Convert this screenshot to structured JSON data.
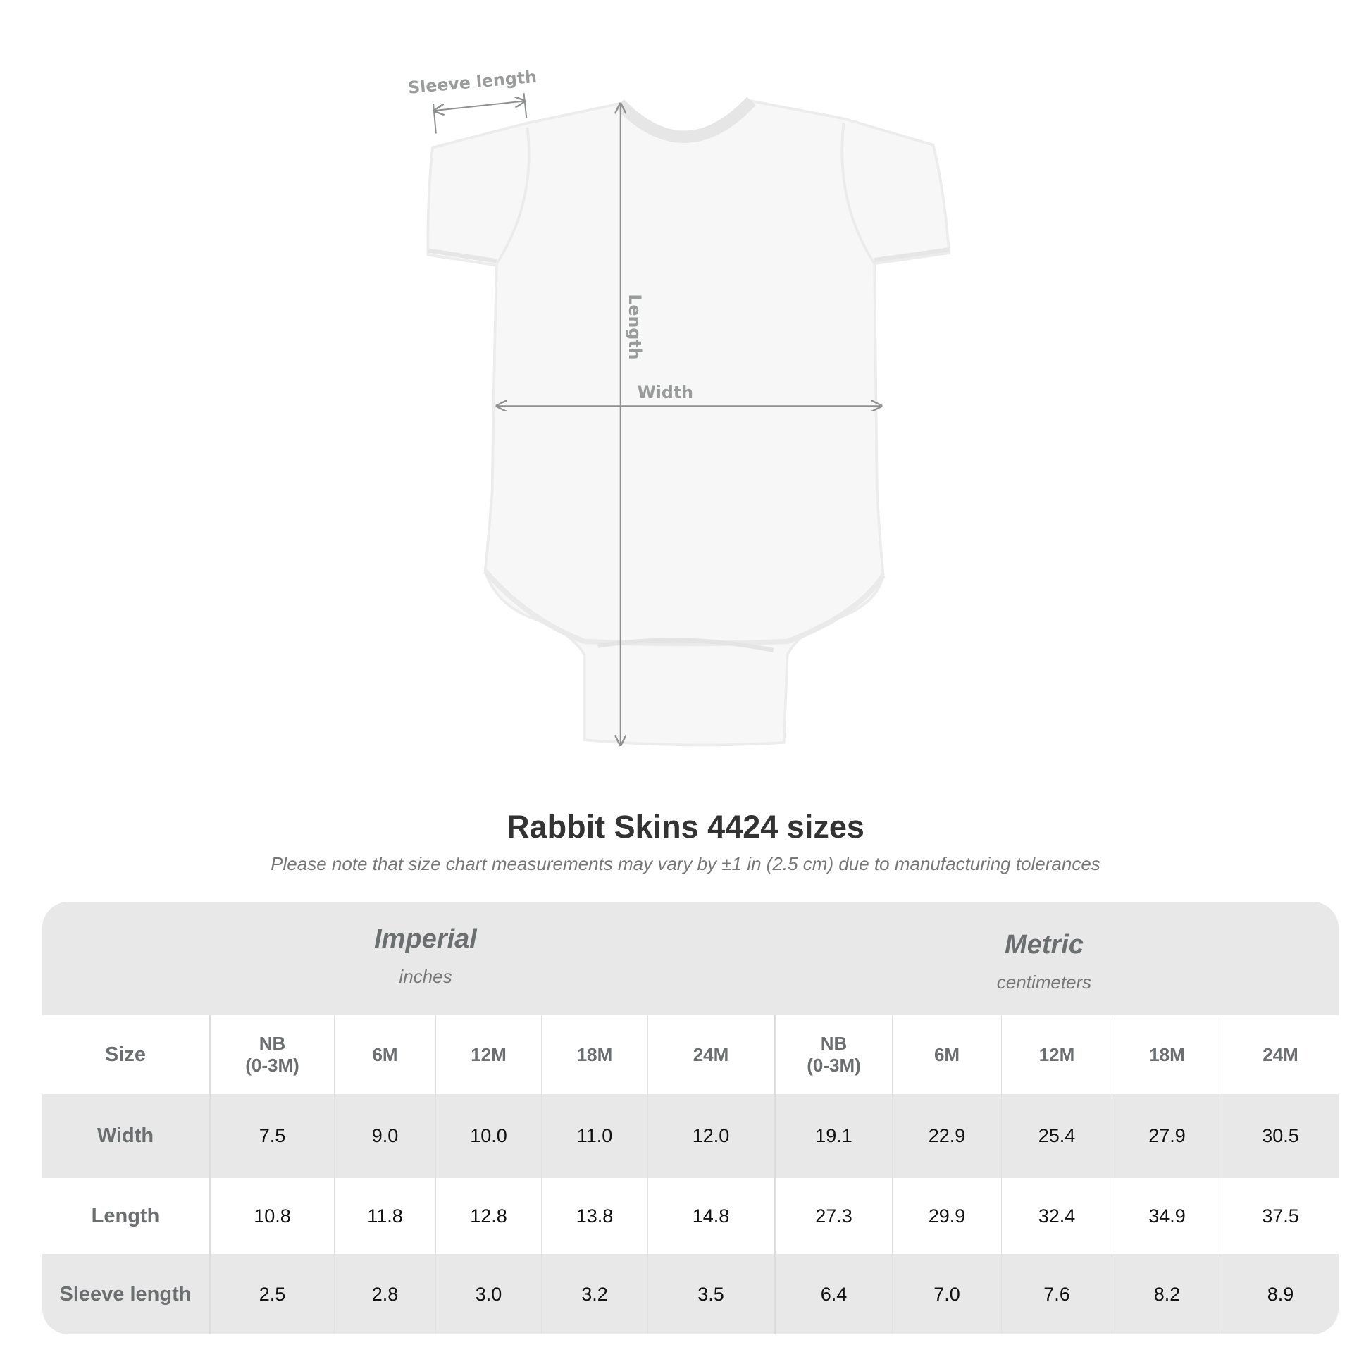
{
  "diagram": {
    "labels": {
      "sleeve": "Sleeve length",
      "length": "Length",
      "width": "Width"
    }
  },
  "title": "Rabbit Skins 4424 sizes",
  "subtitle": "Please note that size chart measurements may vary by ±1 in (2.5 cm) due to manufacturing tolerances",
  "table": {
    "imperial": {
      "name": "Imperial",
      "unit": "inches"
    },
    "metric": {
      "name": "Metric",
      "unit": "centimeters"
    },
    "size_label": "Size",
    "sizes": [
      "NB\n(0-3M)",
      "6M",
      "12M",
      "18M",
      "24M"
    ],
    "rows": [
      {
        "label": "Width",
        "imperial": [
          "7.5",
          "9.0",
          "10.0",
          "11.0",
          "12.0"
        ],
        "metric": [
          "19.1",
          "22.9",
          "25.4",
          "27.9",
          "30.5"
        ]
      },
      {
        "label": "Length",
        "imperial": [
          "10.8",
          "11.8",
          "12.8",
          "13.8",
          "14.8"
        ],
        "metric": [
          "27.3",
          "29.9",
          "32.4",
          "34.9",
          "37.5"
        ]
      },
      {
        "label": "Sleeve length",
        "imperial": [
          "2.5",
          "2.8",
          "3.0",
          "3.2",
          "3.5"
        ],
        "metric": [
          "6.4",
          "7.0",
          "7.6",
          "8.2",
          "8.9"
        ]
      }
    ]
  },
  "colors": {
    "band": "#e8e8e8",
    "label": "#6b6f70",
    "arrow": "#8f9191"
  }
}
